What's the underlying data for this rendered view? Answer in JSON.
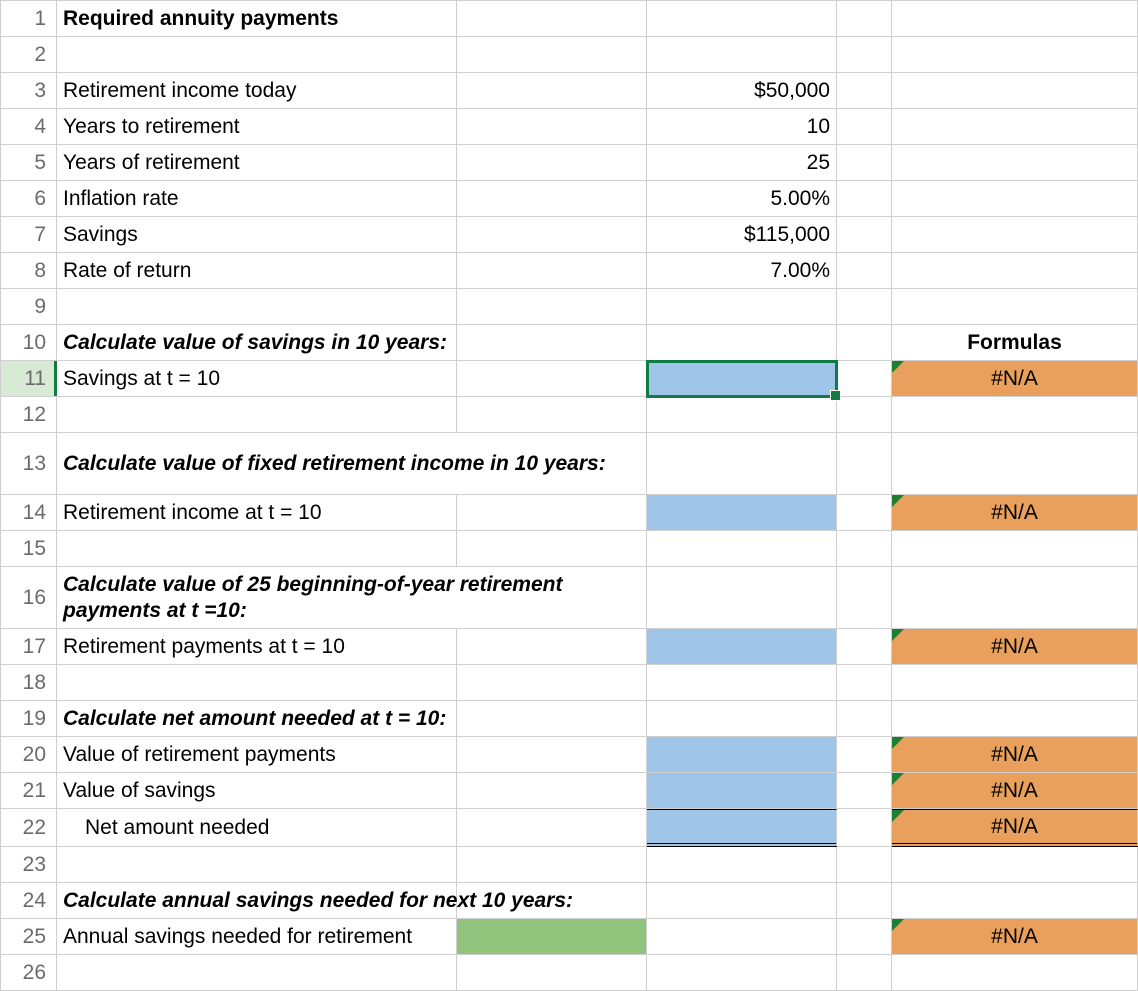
{
  "active_row": 11,
  "rows": [
    {
      "n": 1,
      "h": "norm",
      "a_html": "<span class='bold'>Required annuity payments</span>",
      "a_overflow": true
    },
    {
      "n": 2,
      "h": "norm"
    },
    {
      "n": 3,
      "h": "norm",
      "a_html": "Retirement income today",
      "c_html": "$50,000",
      "c_align": "right"
    },
    {
      "n": 4,
      "h": "norm",
      "a_html": "Years to retirement",
      "c_html": "10",
      "c_align": "right"
    },
    {
      "n": 5,
      "h": "norm",
      "a_html": "Years of retirement",
      "c_html": "25",
      "c_align": "right"
    },
    {
      "n": 6,
      "h": "norm",
      "a_html": "Inflation rate",
      "c_html": "5.00%",
      "c_align": "right"
    },
    {
      "n": 7,
      "h": "norm",
      "a_html": "Savings",
      "c_html": "$115,000",
      "c_align": "right"
    },
    {
      "n": 8,
      "h": "norm",
      "a_html": "Rate of return",
      "c_html": "7.00%",
      "c_align": "right"
    },
    {
      "n": 9,
      "h": "norm"
    },
    {
      "n": 10,
      "h": "norm",
      "a_html": "<span class='bold italic'>Calculate value of savings in 10 years:</span>",
      "a_overflow": true,
      "e_html": "<span class='bold'>Formulas</span>",
      "e_align": "center"
    },
    {
      "n": 11,
      "h": "norm",
      "a_html": "Savings at t = 10",
      "c_fill": "fill-blue",
      "c_selected": true,
      "e_fill": "fill-orange",
      "e_err": true,
      "e_html": "#N/A",
      "e_align": "center"
    },
    {
      "n": 12,
      "h": "norm"
    },
    {
      "n": 13,
      "h": "tall",
      "a_html": "<span class='bold italic'>Calculate value of fixed retirement income in 10 years:</span>",
      "a_wrap": true,
      "a_overflow": true
    },
    {
      "n": 14,
      "h": "norm",
      "a_html": "Retirement income at t = 10",
      "c_fill": "fill-blue",
      "e_fill": "fill-orange",
      "e_err": true,
      "e_html": "#N/A",
      "e_align": "center"
    },
    {
      "n": 15,
      "h": "norm"
    },
    {
      "n": 16,
      "h": "tall",
      "a_html": "<span class='bold italic'>Calculate value of 25 beginning-of-year retirement payments at t =10:</span>",
      "a_wrap": true,
      "a_overflow": true
    },
    {
      "n": 17,
      "h": "norm",
      "a_html": "Retirement payments at t = 10",
      "c_fill": "fill-blue",
      "e_fill": "fill-orange",
      "e_err": true,
      "e_html": "#N/A",
      "e_align": "center"
    },
    {
      "n": 18,
      "h": "norm"
    },
    {
      "n": 19,
      "h": "norm",
      "a_html": "<span class='bold italic'>Calculate net amount needed at t = 10:</span>",
      "a_overflow": true
    },
    {
      "n": 20,
      "h": "norm",
      "a_html": "Value of retirement payments",
      "c_fill": "fill-blue",
      "e_fill": "fill-orange",
      "e_err": true,
      "e_html": "#N/A",
      "e_align": "center"
    },
    {
      "n": 21,
      "h": "norm",
      "a_html": "Value of savings",
      "c_fill": "fill-blue",
      "e_fill": "fill-orange",
      "e_err": true,
      "e_html": "#N/A",
      "e_align": "center"
    },
    {
      "n": 22,
      "h": "norm",
      "a_html": "Net amount needed",
      "a_indent": true,
      "c_fill": "fill-blue",
      "c_topline": true,
      "c_dbl": true,
      "e_fill": "fill-orange",
      "e_err": true,
      "e_html": "#N/A",
      "e_align": "center",
      "e_topline": true,
      "e_dbl": true
    },
    {
      "n": 23,
      "h": "norm"
    },
    {
      "n": 24,
      "h": "norm",
      "a_html": "<span class='bold italic'>Calculate annual savings needed for next 10 years:</span>",
      "a_overflow": true
    },
    {
      "n": 25,
      "h": "norm",
      "a_html": "Annual savings needed for retirement",
      "a_overflow": true,
      "b_fill": "fill-green",
      "e_fill": "fill-orange",
      "e_err": true,
      "e_html": "#N/A",
      "e_align": "center"
    },
    {
      "n": 26,
      "h": "norm"
    }
  ]
}
